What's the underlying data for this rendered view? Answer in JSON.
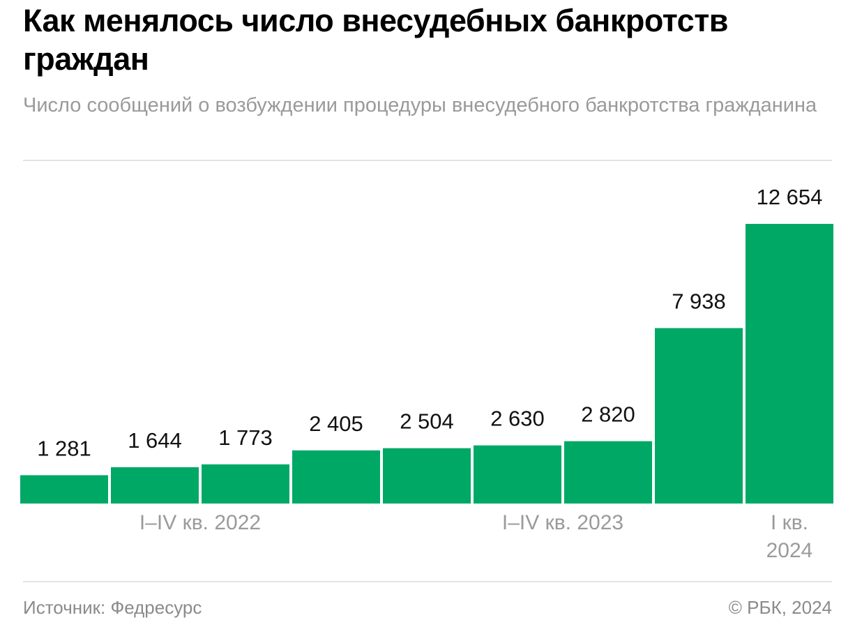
{
  "chart_data": {
    "type": "bar",
    "title": "Как менялось число внесудебных банкротств граждан",
    "subtitle": "Число сообщений о возбуждении процедуры внесудебного банкротства гражданина",
    "color": "#00a866",
    "groups": [
      {
        "label": "I–IV кв. 2022",
        "values": [
          1281,
          1644,
          1773,
          2405
        ],
        "value_labels": [
          "1 281",
          "1 644",
          "1 773",
          "2 405"
        ]
      },
      {
        "label": "I–IV кв. 2023",
        "values": [
          2504,
          2630,
          2820,
          7938
        ],
        "value_labels": [
          "2 504",
          "2 630",
          "2 820",
          "7 938"
        ]
      },
      {
        "label": "I кв. 2024",
        "values": [
          12654
        ],
        "value_labels": [
          "12 654"
        ]
      }
    ],
    "source": "Источник: Федресурс",
    "copyright": "© РБК, 2024"
  }
}
